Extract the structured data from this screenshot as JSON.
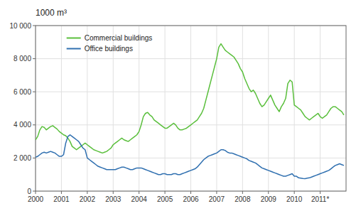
{
  "chart_data": {
    "type": "line",
    "title": "1000 m³",
    "x": [
      2000,
      2000.083333,
      2000.166667,
      2000.25,
      2000.333333,
      2000.416667,
      2000.5,
      2000.583333,
      2000.666667,
      2000.75,
      2000.833333,
      2000.916667,
      2001,
      2001.083333,
      2001.166667,
      2001.25,
      2001.333333,
      2001.416667,
      2001.5,
      2001.583333,
      2001.666667,
      2001.75,
      2001.833333,
      2001.916667,
      2002,
      2002.083333,
      2002.166667,
      2002.25,
      2002.333333,
      2002.416667,
      2002.5,
      2002.583333,
      2002.666667,
      2002.75,
      2002.833333,
      2002.916667,
      2003,
      2003.083333,
      2003.166667,
      2003.25,
      2003.333333,
      2003.416667,
      2003.5,
      2003.583333,
      2003.666667,
      2003.75,
      2003.833333,
      2003.916667,
      2004,
      2004.083333,
      2004.166667,
      2004.25,
      2004.333333,
      2004.416667,
      2004.5,
      2004.583333,
      2004.666667,
      2004.75,
      2004.833333,
      2004.916667,
      2005,
      2005.083333,
      2005.166667,
      2005.25,
      2005.333333,
      2005.416667,
      2005.5,
      2005.583333,
      2005.666667,
      2005.75,
      2005.833333,
      2005.916667,
      2006,
      2006.083333,
      2006.166667,
      2006.25,
      2006.333333,
      2006.416667,
      2006.5,
      2006.583333,
      2006.666667,
      2006.75,
      2006.833333,
      2006.916667,
      2007,
      2007.083333,
      2007.166667,
      2007.25,
      2007.333333,
      2007.416667,
      2007.5,
      2007.583333,
      2007.666667,
      2007.75,
      2007.833333,
      2007.916667,
      2008,
      2008.083333,
      2008.166667,
      2008.25,
      2008.333333,
      2008.416667,
      2008.5,
      2008.583333,
      2008.666667,
      2008.75,
      2008.833333,
      2008.916667,
      2009,
      2009.083333,
      2009.166667,
      2009.25,
      2009.333333,
      2009.416667,
      2009.5,
      2009.583333,
      2009.666667,
      2009.75,
      2009.833333,
      2009.916667,
      2010,
      2010.083333,
      2010.166667,
      2010.25,
      2010.333333,
      2010.416667,
      2010.5,
      2010.583333,
      2010.666667,
      2010.75,
      2010.833333,
      2010.916667,
      2011,
      2011.083333,
      2011.166667,
      2011.25,
      2011.333333,
      2011.416667,
      2011.5,
      2011.583333,
      2011.666667,
      2011.75,
      2011.833333,
      2011.916667
    ],
    "series": [
      {
        "name": "Commercial buildings",
        "color": "#5abf3c",
        "values": [
          3100,
          3300,
          3700,
          3900,
          3850,
          3700,
          3800,
          3900,
          3950,
          3850,
          3750,
          3600,
          3500,
          3400,
          3350,
          3200,
          3000,
          2700,
          2600,
          2500,
          2600,
          2700,
          2800,
          2900,
          2800,
          2700,
          2600,
          2500,
          2450,
          2400,
          2350,
          2300,
          2350,
          2400,
          2500,
          2600,
          2800,
          2900,
          3000,
          3100,
          3200,
          3100,
          3050,
          3000,
          3100,
          3200,
          3300,
          3400,
          3600,
          4000,
          4500,
          4700,
          4750,
          4600,
          4500,
          4300,
          4200,
          4100,
          4000,
          3900,
          3800,
          3800,
          3900,
          4000,
          4100,
          4000,
          3800,
          3700,
          3700,
          3750,
          3800,
          3900,
          4000,
          4100,
          4200,
          4300,
          4500,
          4700,
          5000,
          5500,
          6000,
          6500,
          7000,
          7500,
          8000,
          8700,
          8900,
          8700,
          8500,
          8400,
          8300,
          8200,
          8100,
          7900,
          7700,
          7400,
          7200,
          6800,
          6500,
          6200,
          6000,
          6100,
          5900,
          5600,
          5300,
          5100,
          5200,
          5400,
          5600,
          5800,
          5500,
          5200,
          5000,
          4800,
          5100,
          5300,
          5600,
          6500,
          6700,
          6600,
          5200,
          5100,
          5000,
          4900,
          4700,
          4500,
          4400,
          4300,
          4400,
          4500,
          4600,
          4700,
          4500,
          4400,
          4500,
          4600,
          4800,
          5000,
          5100,
          5100,
          5000,
          4900,
          4800,
          4600
        ]
      },
      {
        "name": "Office buildings",
        "color": "#3070b0",
        "values": [
          2050,
          2100,
          2200,
          2300,
          2350,
          2300,
          2350,
          2400,
          2350,
          2300,
          2200,
          2100,
          2100,
          2200,
          2900,
          3300,
          3400,
          3300,
          3200,
          3100,
          3000,
          2800,
          2600,
          2500,
          2000,
          1900,
          1800,
          1700,
          1600,
          1500,
          1450,
          1400,
          1350,
          1300,
          1300,
          1300,
          1300,
          1300,
          1350,
          1400,
          1450,
          1450,
          1400,
          1350,
          1300,
          1300,
          1350,
          1400,
          1400,
          1400,
          1350,
          1300,
          1250,
          1200,
          1150,
          1100,
          1050,
          1000,
          1000,
          1050,
          1050,
          1000,
          1000,
          1000,
          1050,
          1050,
          1000,
          1000,
          1050,
          1100,
          1150,
          1200,
          1250,
          1300,
          1350,
          1450,
          1600,
          1750,
          1900,
          2000,
          2100,
          2150,
          2200,
          2250,
          2300,
          2400,
          2500,
          2500,
          2450,
          2350,
          2300,
          2300,
          2250,
          2200,
          2150,
          2100,
          2050,
          2000,
          1950,
          1850,
          1800,
          1750,
          1700,
          1600,
          1500,
          1400,
          1350,
          1300,
          1250,
          1200,
          1150,
          1100,
          1050,
          1000,
          950,
          900,
          900,
          950,
          1000,
          1050,
          900,
          900,
          800,
          780,
          760,
          750,
          780,
          800,
          850,
          900,
          950,
          1000,
          1050,
          1100,
          1150,
          1200,
          1250,
          1350,
          1450,
          1550,
          1600,
          1650,
          1600,
          1550
        ]
      }
    ],
    "xlim": [
      2000,
      2012
    ],
    "xticks": [
      2000,
      2001,
      2002,
      2003,
      2004,
      2005,
      2006,
      2007,
      2008,
      2009,
      2010,
      {
        "value": 2011,
        "label": "2011*"
      }
    ],
    "ylim": [
      0,
      10000
    ],
    "yticks": [
      0,
      {
        "value": 2000,
        "label": "2 000"
      },
      {
        "value": 4000,
        "label": "4 000"
      },
      {
        "value": 6000,
        "label": "6 000"
      },
      {
        "value": 8000,
        "label": "8 000"
      },
      {
        "value": 10000,
        "label": "10 000"
      }
    ],
    "grid": true,
    "legend": "upper left"
  }
}
